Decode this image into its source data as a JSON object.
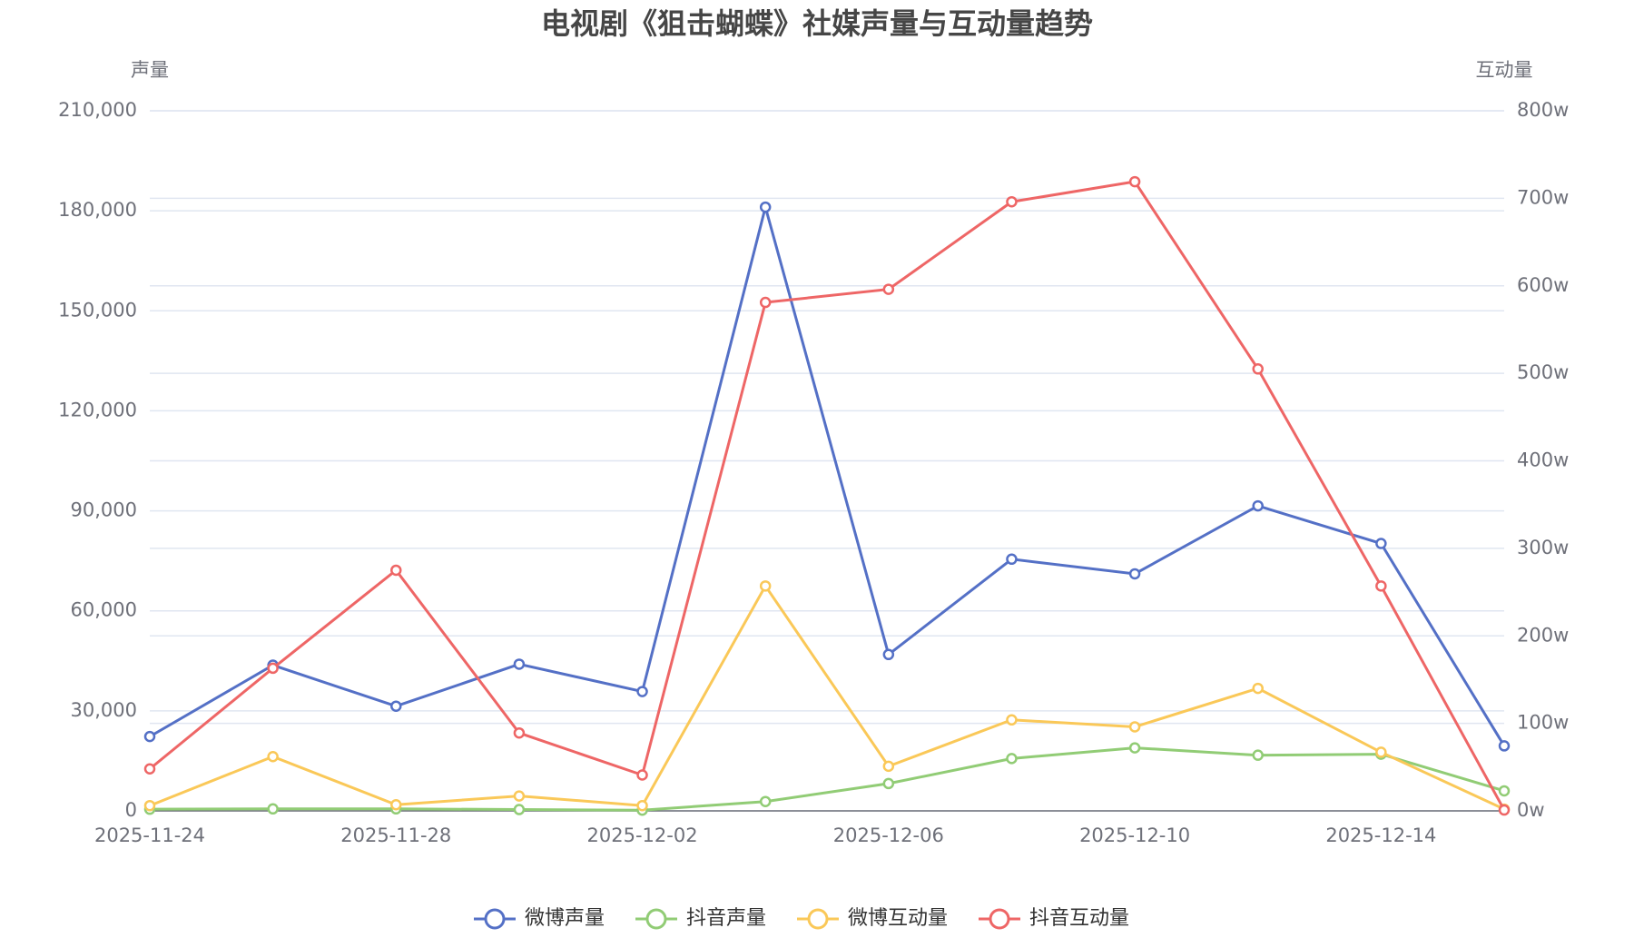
{
  "chart_data": {
    "type": "line",
    "title": "电视剧《狙击蝴蝶》社媒声量与互动量趋势",
    "y_label": "声量",
    "y2_label": "互动量",
    "categories": [
      "2025-11-24",
      null,
      "2025-11-28",
      null,
      "2025-12-02",
      null,
      "2025-12-06",
      null,
      "2025-12-10",
      null,
      "2025-12-14",
      null
    ],
    "ylim": [
      0,
      210000
    ],
    "yticks": [
      0,
      {
        "value": 30000,
        "label": "30,000"
      },
      {
        "value": 60000,
        "label": "60,000"
      },
      {
        "value": 90000,
        "label": "90,000"
      },
      {
        "value": 120000,
        "label": "120,000"
      },
      {
        "value": 150000,
        "label": "150,000"
      },
      {
        "value": 180000,
        "label": "180,000"
      },
      {
        "value": 210000,
        "label": "210,000"
      }
    ],
    "y2lim": [
      0,
      800
    ],
    "y2ticks": [
      {
        "value": 0,
        "label": "0w"
      },
      {
        "value": 100,
        "label": "100w"
      },
      {
        "value": 200,
        "label": "200w"
      },
      {
        "value": 300,
        "label": "300w"
      },
      {
        "value": 400,
        "label": "400w"
      },
      {
        "value": 500,
        "label": "500w"
      },
      {
        "value": 600,
        "label": "600w"
      },
      {
        "value": 700,
        "label": "700w"
      },
      {
        "value": 800,
        "label": "800w"
      }
    ],
    "grid": true,
    "legend": "bottom",
    "series": [
      {
        "name": "微博声量",
        "color": "#5470c6",
        "values": [
          22300,
          43700,
          31400,
          44000,
          35800,
          181100,
          46900,
          75500,
          71100,
          91500,
          80200,
          19500
        ]
      },
      {
        "name": "抖音声量",
        "color": "#91cc75",
        "values": [
          500,
          600,
          600,
          400,
          200,
          2800,
          8200,
          15700,
          18900,
          16700,
          17000,
          6000
        ]
      },
      {
        "name": "微博互动量",
        "color": "#fac858",
        "axis": "y2",
        "values": [
          6,
          62,
          7,
          17,
          6,
          257,
          51,
          104,
          96,
          140,
          67,
          2
        ]
      },
      {
        "name": "抖音互动量",
        "color": "#ee6666",
        "axis": "y2",
        "values": [
          48,
          163,
          275,
          89,
          41,
          581,
          596,
          696,
          719,
          505,
          257,
          1
        ]
      }
    ]
  }
}
